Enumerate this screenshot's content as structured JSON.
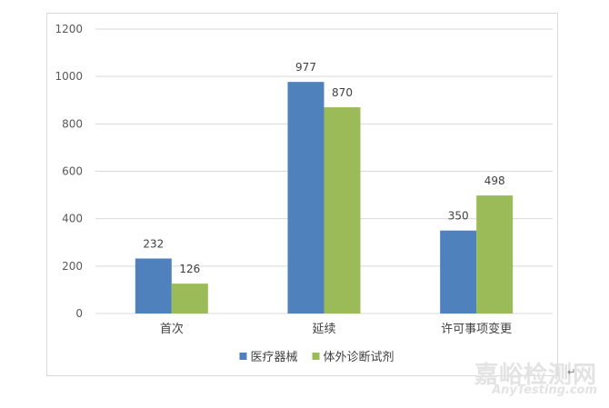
{
  "chart_data": {
    "type": "bar",
    "categories": [
      "首次",
      "延续",
      "许可事项变更"
    ],
    "series": [
      {
        "name": "医疗器械",
        "color": "#4f81bd",
        "values": [
          232,
          977,
          350
        ]
      },
      {
        "name": "体外诊断试剂",
        "color": "#9bbb59",
        "values": [
          126,
          870,
          498
        ]
      }
    ],
    "ylim": [
      0,
      1200
    ],
    "yticks": [
      0,
      200,
      400,
      600,
      800,
      1000,
      1200
    ],
    "grid": true,
    "legend_position": "bottom",
    "title": "",
    "xlabel": "",
    "ylabel": ""
  },
  "watermark": {
    "cn": "嘉峪检测网",
    "en": "AnyTesting.com"
  },
  "return_mark": "↵"
}
